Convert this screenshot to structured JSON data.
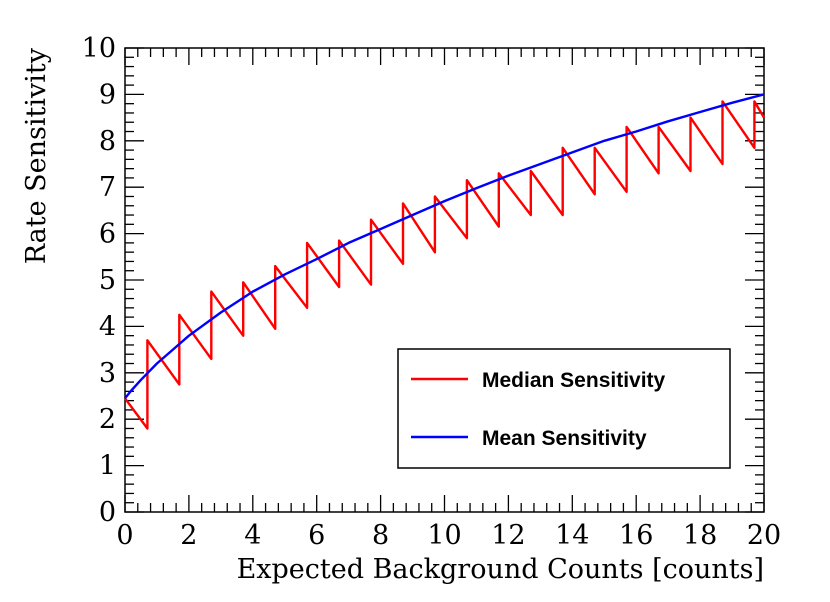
{
  "chart_data": {
    "type": "line",
    "xlabel": "Expected Background Counts [counts]",
    "ylabel": "Rate Sensitivity",
    "xlim": [
      0,
      20
    ],
    "ylim": [
      0,
      10
    ],
    "x_ticks": [
      "0",
      "2",
      "4",
      "6",
      "8",
      "10",
      "12",
      "14",
      "16",
      "18",
      "20"
    ],
    "y_ticks": [
      "0",
      "1",
      "2",
      "3",
      "4",
      "5",
      "6",
      "7",
      "8",
      "9",
      "10"
    ],
    "legend_position": "bottom-right",
    "series": [
      {
        "name": "Median Sensitivity",
        "color": "#ff0000",
        "x": [
          0,
          0.7,
          0.7,
          1.7,
          1.7,
          2.7,
          2.7,
          3.7,
          3.7,
          4.7,
          4.7,
          5.7,
          5.7,
          6.7,
          6.7,
          7.7,
          7.7,
          8.7,
          8.7,
          9.7,
          9.7,
          10.7,
          10.7,
          11.7,
          11.7,
          12.7,
          12.7,
          13.7,
          13.7,
          14.7,
          14.7,
          15.7,
          15.7,
          16.7,
          16.7,
          17.7,
          17.7,
          18.7,
          18.7,
          19.7,
          19.7,
          20
        ],
        "y": [
          2.45,
          1.8,
          3.7,
          2.75,
          4.25,
          3.3,
          4.75,
          3.8,
          4.95,
          3.95,
          5.3,
          4.4,
          5.8,
          4.85,
          5.85,
          4.9,
          6.3,
          5.35,
          6.65,
          5.6,
          6.8,
          5.9,
          7.15,
          6.15,
          7.3,
          6.4,
          7.35,
          6.4,
          7.85,
          6.85,
          7.85,
          6.9,
          8.3,
          7.3,
          8.3,
          7.35,
          8.5,
          7.5,
          8.85,
          7.85,
          8.85,
          8.5
        ]
      },
      {
        "name": "Mean Sensitivity",
        "color": "#0000ff",
        "x": [
          0,
          0.2,
          0.5,
          1,
          1.5,
          2,
          3,
          4,
          5,
          6,
          7,
          8,
          9,
          10,
          11,
          12,
          13,
          14,
          15,
          16,
          17,
          18,
          19,
          20
        ],
        "y": [
          2.45,
          2.62,
          2.85,
          3.2,
          3.5,
          3.8,
          4.3,
          4.75,
          5.12,
          5.45,
          5.8,
          6.1,
          6.4,
          6.7,
          6.98,
          7.25,
          7.5,
          7.75,
          8.0,
          8.2,
          8.42,
          8.62,
          8.82,
          9.0
        ]
      }
    ]
  }
}
